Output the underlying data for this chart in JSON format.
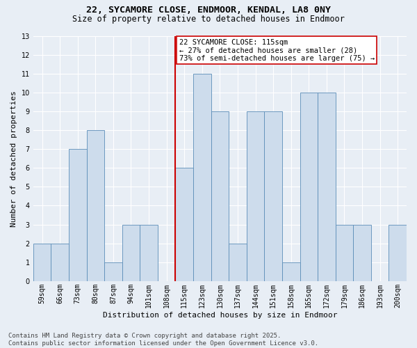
{
  "title_line1": "22, SYCAMORE CLOSE, ENDMOOR, KENDAL, LA8 0NY",
  "title_line2": "Size of property relative to detached houses in Endmoor",
  "xlabel": "Distribution of detached houses by size in Endmoor",
  "ylabel": "Number of detached properties",
  "categories": [
    "59sqm",
    "66sqm",
    "73sqm",
    "80sqm",
    "87sqm",
    "94sqm",
    "101sqm",
    "108sqm",
    "115sqm",
    "123sqm",
    "130sqm",
    "137sqm",
    "144sqm",
    "151sqm",
    "158sqm",
    "165sqm",
    "172sqm",
    "179sqm",
    "186sqm",
    "193sqm",
    "200sqm"
  ],
  "values": [
    2,
    2,
    7,
    8,
    1,
    3,
    3,
    0,
    6,
    11,
    9,
    2,
    9,
    9,
    1,
    10,
    10,
    3,
    3,
    0,
    3
  ],
  "highlight_index": 8,
  "bar_color": "#cddcec",
  "bar_edge_color": "#5b8db8",
  "highlight_line_color": "#cc0000",
  "ylim": [
    0,
    13
  ],
  "yticks": [
    0,
    1,
    2,
    3,
    4,
    5,
    6,
    7,
    8,
    9,
    10,
    11,
    12,
    13
  ],
  "annotation_text": "22 SYCAMORE CLOSE: 115sqm\n← 27% of detached houses are smaller (28)\n73% of semi-detached houses are larger (75) →",
  "annotation_box_color": "#ffffff",
  "annotation_box_edge": "#cc0000",
  "footer_text": "Contains HM Land Registry data © Crown copyright and database right 2025.\nContains public sector information licensed under the Open Government Licence v3.0.",
  "bg_color": "#e8eef5",
  "plot_bg_color": "#e8eef5",
  "grid_color": "#ffffff",
  "title_fontsize": 9.5,
  "subtitle_fontsize": 8.5,
  "axis_label_fontsize": 8,
  "tick_fontsize": 7,
  "annotation_fontsize": 7.5,
  "footer_fontsize": 6.5,
  "ylabel_fontsize": 8
}
